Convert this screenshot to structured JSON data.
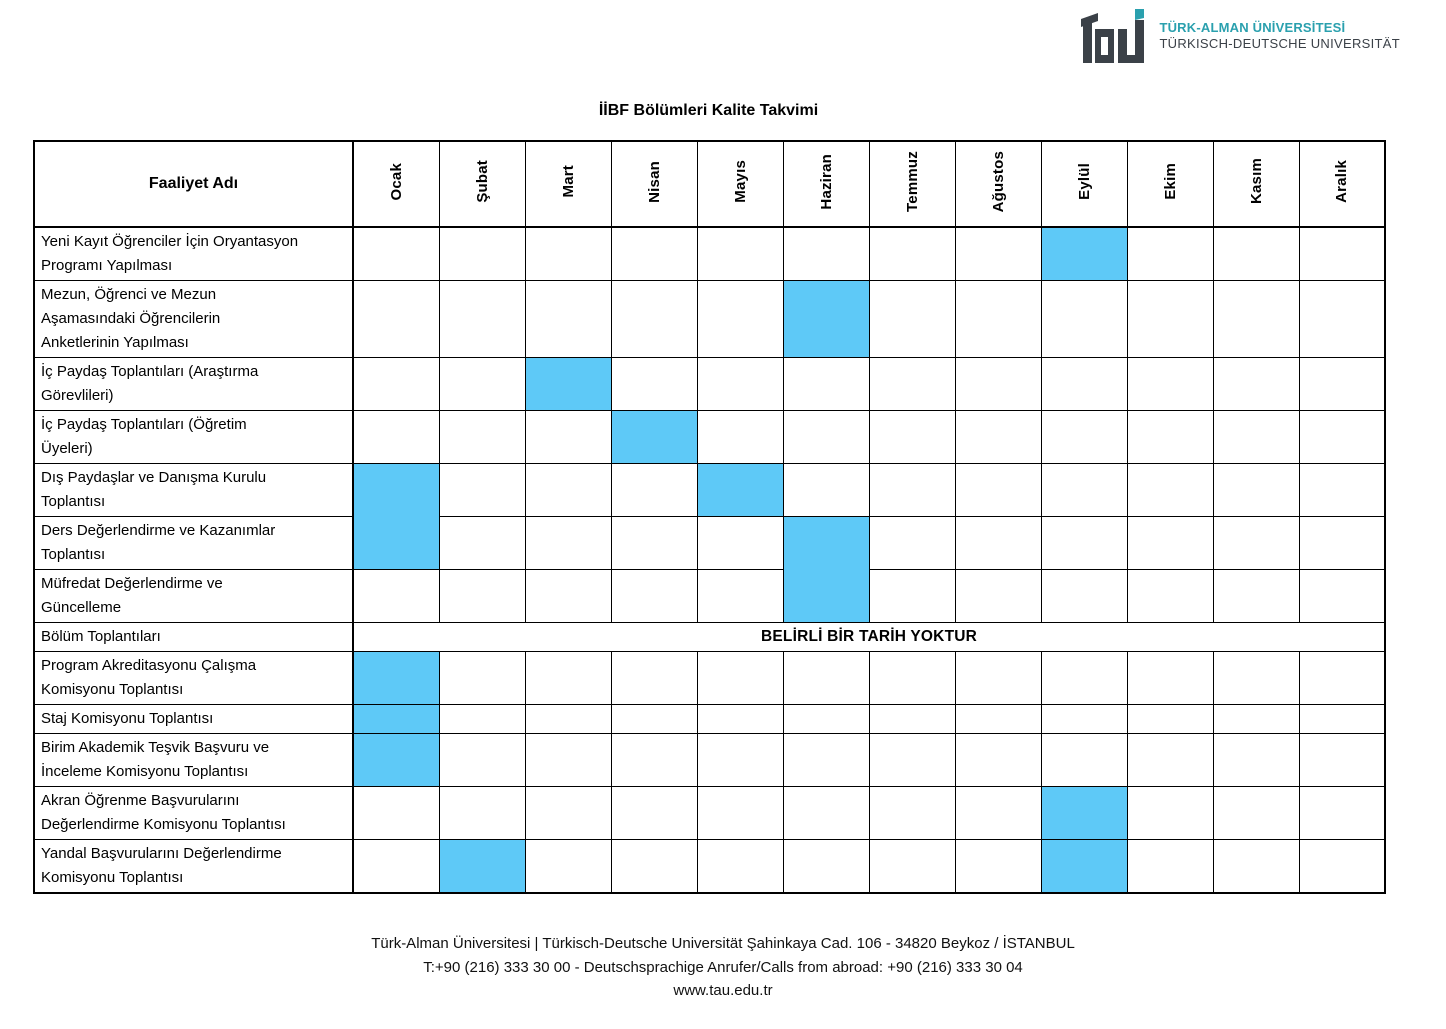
{
  "logo": {
    "line1": "TÜRK-ALMAN ÜNİVERSİTESİ",
    "line2": "TÜRKISCH-DEUTSCHE UNIVERSITÄT",
    "teal_color": "#2AA0AE",
    "dark_color": "#3B4148"
  },
  "title": "İİBF Bölümleri Kalite Takvimi",
  "table": {
    "activity_header": "Faaliyet Adı",
    "months": [
      "Ocak",
      "Şubat",
      "Mart",
      "Nisan",
      "Mayıs",
      "Haziran",
      "Temmuz",
      "Ağustos",
      "Eylül",
      "Ekim",
      "Kasım",
      "Aralık"
    ],
    "no_date_text": "BELİRLİ BİR TARİH YOKTUR",
    "highlight_color": "#5EC9F7",
    "rows": [
      {
        "activity": "Yeni Kayıt Öğrenciler İçin Oryantasyon\nProgramı Yapılması",
        "highlights": [
          {
            "month": "Eylül"
          }
        ]
      },
      {
        "activity": "Mezun, Öğrenci ve Mezun\nAşamasındaki Öğrencilerin\nAnketlerinin Yapılması",
        "highlights": [
          {
            "month": "Haziran"
          }
        ]
      },
      {
        "activity": "İç Paydaş Toplantıları (Araştırma\nGörevlileri)",
        "highlights": [
          {
            "month": "Mart"
          }
        ]
      },
      {
        "activity": "İç Paydaş Toplantıları (Öğretim\nÜyeleri)",
        "highlights": [
          {
            "month": "Nisan"
          }
        ]
      },
      {
        "activity": "Dış Paydaşlar ve Danışma Kurulu\nToplantısı",
        "highlights": [
          {
            "month": "Ocak",
            "rowspan": 2
          },
          {
            "month": "Mayıs"
          }
        ]
      },
      {
        "activity": "Ders Değerlendirme ve Kazanımlar\nToplantısı",
        "highlights": [
          {
            "month": "Haziran",
            "rowspan": 2
          }
        ]
      },
      {
        "activity": "Müfredat Değerlendirme ve\nGüncelleme",
        "highlights": []
      },
      {
        "activity": "Bölüm Toplantıları",
        "no_date_row": true,
        "highlights": []
      },
      {
        "activity": "Program Akreditasyonu Çalışma\nKomisyonu Toplantısı",
        "highlights": [
          {
            "month": "Ocak"
          }
        ]
      },
      {
        "activity": "Staj Komisyonu Toplantısı",
        "highlights": [
          {
            "month": "Ocak"
          }
        ]
      },
      {
        "activity": "Birim Akademik Teşvik Başvuru ve\nİnceleme Komisyonu Toplantısı",
        "highlights": [
          {
            "month": "Ocak"
          }
        ]
      },
      {
        "activity": "Akran Öğrenme Başvurularını\nDeğerlendirme Komisyonu Toplantısı",
        "highlights": [
          {
            "month": "Eylül"
          }
        ]
      },
      {
        "activity": "Yandal Başvurularını Değerlendirme\nKomisyonu Toplantısı",
        "highlights": [
          {
            "month": "Şubat"
          },
          {
            "month": "Eylül"
          }
        ]
      }
    ]
  },
  "footer": {
    "line1": "Türk-Alman Üniversitesi | Türkisch-Deutsche Universität Şahinkaya Cad. 106 - 34820 Beykoz / İSTANBUL",
    "line2": "T:+90 (216) 333 30 00 - Deutschsprachige Anrufer/Calls from abroad: +90 (216) 333 30 04",
    "line3": "www.tau.edu.tr"
  }
}
